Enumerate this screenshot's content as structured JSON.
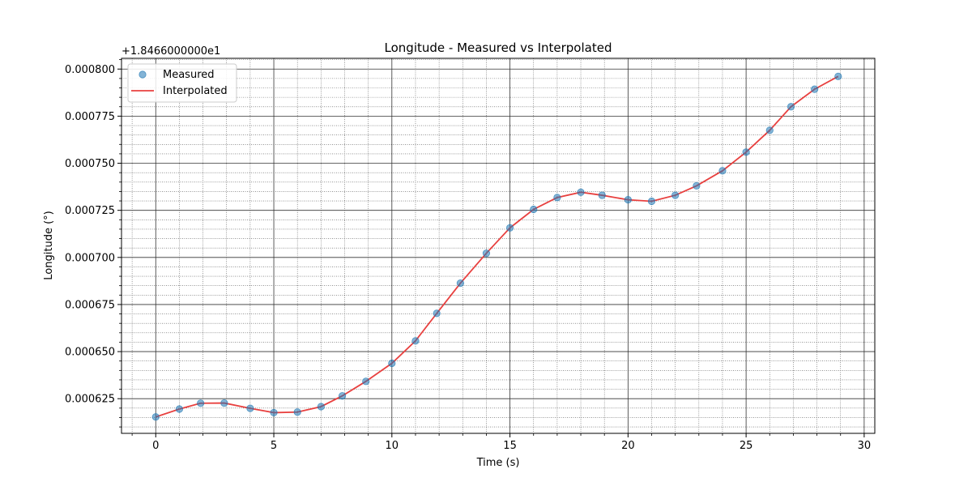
{
  "chart_data": {
    "type": "line",
    "title": "Longitude - Measured vs Interpolated",
    "xlabel": "Time (s)",
    "ylabel": "Longitude (°)",
    "offset_text": "+1.8466000000e1",
    "xlim": [
      -1.45,
      30.45
    ],
    "ylim": [
      0.0006066,
      0.0008057
    ],
    "x_ticks": [
      0,
      5,
      10,
      15,
      20,
      25,
      30
    ],
    "y_ticks": [
      0.000625,
      0.00065,
      0.000675,
      0.0007,
      0.000725,
      0.00075,
      0.000775,
      0.0008
    ],
    "y_tick_labels": [
      "0.000625",
      "0.000650",
      "0.000675",
      "0.000700",
      "0.000725",
      "0.000750",
      "0.000775",
      "0.000800"
    ],
    "grid": true,
    "legend_position": "upper-left",
    "series": [
      {
        "name": "Measured",
        "style": "scatter",
        "color": "#1f77b4",
        "x": [
          0,
          1,
          1.9,
          2.9,
          4,
          5,
          6,
          7,
          7.9,
          8.9,
          10,
          11,
          11.9,
          12.9,
          14,
          15,
          16,
          17,
          18,
          18.9,
          20,
          21,
          22,
          22.9,
          24,
          25,
          26,
          26.9,
          27.9,
          28.9
        ],
        "y": [
          0.0006153,
          0.0006195,
          0.0006226,
          0.0006227,
          0.0006199,
          0.0006176,
          0.0006179,
          0.0006208,
          0.0006265,
          0.0006342,
          0.0006438,
          0.0006557,
          0.0006703,
          0.0006863,
          0.0007022,
          0.0007157,
          0.0007255,
          0.0007318,
          0.0007346,
          0.000733,
          0.0007306,
          0.0007298,
          0.000733,
          0.000738,
          0.000746,
          0.0007559,
          0.0007675,
          0.00078,
          0.0007893,
          0.0007961
        ]
      },
      {
        "name": "Interpolated",
        "style": "line",
        "color": "#e8403f",
        "x": [
          0,
          1,
          1.9,
          2.9,
          4,
          5,
          6,
          7,
          7.9,
          8.9,
          10,
          11,
          11.9,
          12.9,
          14,
          15,
          16,
          17,
          18,
          18.9,
          20,
          21,
          22,
          22.9,
          24,
          25,
          26,
          26.9,
          27.9,
          28.9
        ],
        "y": [
          0.0006153,
          0.0006195,
          0.0006226,
          0.0006227,
          0.0006199,
          0.0006176,
          0.0006179,
          0.0006208,
          0.0006265,
          0.0006342,
          0.0006438,
          0.0006557,
          0.0006703,
          0.0006863,
          0.0007022,
          0.0007157,
          0.0007255,
          0.0007318,
          0.0007346,
          0.000733,
          0.0007306,
          0.0007298,
          0.000733,
          0.000738,
          0.000746,
          0.0007559,
          0.0007675,
          0.00078,
          0.0007893,
          0.0007961
        ]
      }
    ]
  }
}
